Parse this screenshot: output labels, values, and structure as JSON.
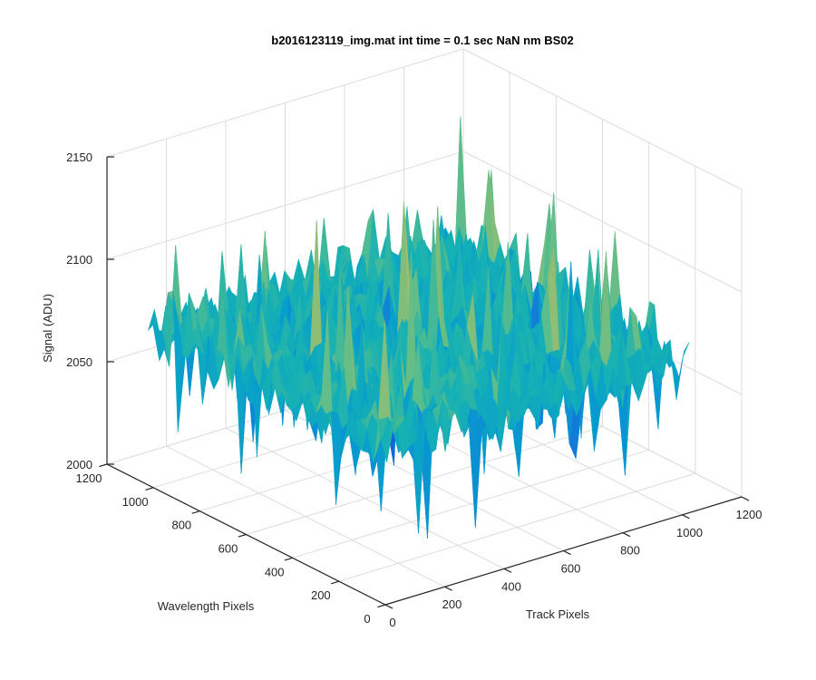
{
  "chart_data": {
    "type": "surface",
    "title": "b2016123119_img.mat int time = 0.1 sec  NaN nm BS02",
    "xlabel": "Track Pixels",
    "ylabel": "Wavelength Pixels",
    "zlabel": "Signal (ADU)",
    "xlim": [
      0,
      1200
    ],
    "ylim": [
      0,
      1200
    ],
    "zlim": [
      2000,
      2150
    ],
    "x_ticks": [
      "0",
      "200",
      "400",
      "600",
      "800",
      "1000",
      "1200"
    ],
    "y_ticks": [
      "0",
      "200",
      "400",
      "600",
      "800",
      "1000",
      "1200"
    ],
    "z_ticks": [
      "2000",
      "2050",
      "2100",
      "2150"
    ],
    "grid": true,
    "colormap": "parula",
    "surface": {
      "extent_x": [
        1,
        1024
      ],
      "extent_y": [
        1,
        1024
      ],
      "mean_signal": 2075,
      "signal_range": [
        2010,
        2145
      ],
      "noise": "random per-pixel noise"
    }
  }
}
